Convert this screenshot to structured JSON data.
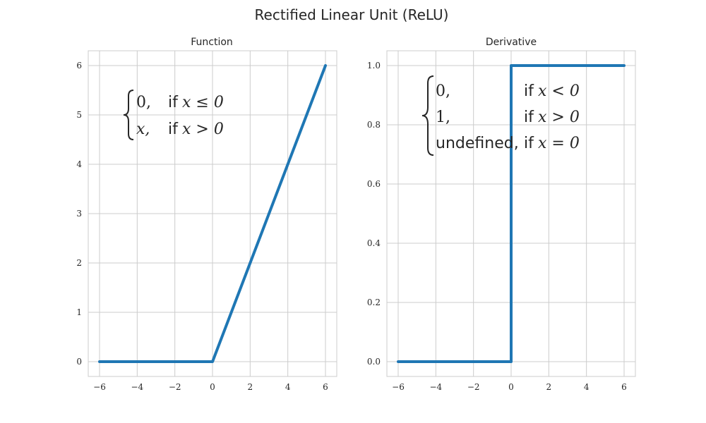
{
  "figure_title": "Rectified Linear Unit (ReLU)",
  "accent_color": "#1f77b4",
  "chart_data": [
    {
      "type": "line",
      "title": "Function",
      "xlabel": "",
      "ylabel": "",
      "xlim": [
        -6.6,
        6.6
      ],
      "ylim": [
        -0.3,
        6.3
      ],
      "xticks": [
        -6,
        -4,
        -2,
        0,
        2,
        4,
        6
      ],
      "xtick_labels": [
        "−6",
        "−4",
        "−2",
        "0",
        "2",
        "4",
        "6"
      ],
      "yticks": [
        0,
        1,
        2,
        3,
        4,
        5,
        6
      ],
      "ytick_labels": [
        "0",
        "1",
        "2",
        "3",
        "4",
        "5",
        "6"
      ],
      "grid": true,
      "series": [
        {
          "color": "#1f77b4",
          "x": [
            -6,
            0,
            6
          ],
          "y": [
            0,
            0,
            6
          ]
        }
      ],
      "annotation": {
        "cases": [
          {
            "value": "0,",
            "condition_word": "if",
            "condition_math": "x ≤ 0"
          },
          {
            "value": "x,",
            "condition_word": "if",
            "condition_math": "x > 0"
          }
        ]
      }
    },
    {
      "type": "line",
      "title": "Derivative",
      "xlabel": "",
      "ylabel": "",
      "xlim": [
        -6.6,
        6.6
      ],
      "ylim": [
        -0.05,
        1.05
      ],
      "xticks": [
        -6,
        -4,
        -2,
        0,
        2,
        4,
        6
      ],
      "xtick_labels": [
        "−6",
        "−4",
        "−2",
        "0",
        "2",
        "4",
        "6"
      ],
      "yticks": [
        0,
        0.2,
        0.4,
        0.6,
        0.8,
        1.0
      ],
      "ytick_labels": [
        "0.0",
        "0.2",
        "0.4",
        "0.6",
        "0.8",
        "1.0"
      ],
      "grid": true,
      "series": [
        {
          "color": "#1f77b4",
          "x": [
            -6,
            0,
            0,
            6
          ],
          "y": [
            0,
            0,
            1,
            1
          ]
        }
      ],
      "annotation": {
        "cases": [
          {
            "value": "0,",
            "condition_word": "if",
            "condition_math": "x < 0"
          },
          {
            "value": "1,",
            "condition_word": "if",
            "condition_math": "x > 0"
          },
          {
            "value": "undefined,",
            "condition_word": "if",
            "condition_math": "x = 0"
          }
        ]
      }
    }
  ]
}
